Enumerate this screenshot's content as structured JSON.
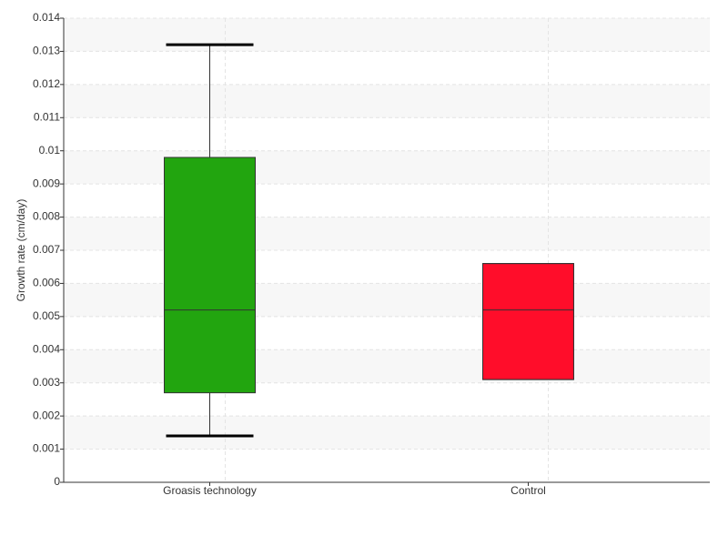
{
  "chart_data": {
    "type": "box",
    "ylabel": "Growth rate (cm/day)",
    "categories": [
      "Groasis technology",
      "Control"
    ],
    "colors": [
      "#22a50f",
      "#ff0d2a"
    ],
    "min": [
      0.0014,
      0.0031
    ],
    "q1": [
      0.0027,
      0.0031
    ],
    "median": [
      0.0052,
      0.0052
    ],
    "q3": [
      0.0098,
      0.0066
    ],
    "max": [
      0.0132,
      0.0066
    ],
    "ylim": [
      0,
      0.014
    ],
    "yticks": [
      0,
      0.001,
      0.002,
      0.003,
      0.004,
      0.005,
      0.006,
      0.007,
      0.008,
      0.009,
      0.01,
      0.011,
      0.012,
      0.013,
      0.014
    ],
    "grid": true
  }
}
